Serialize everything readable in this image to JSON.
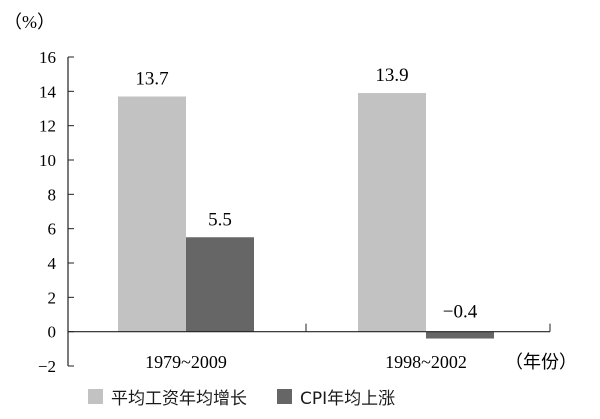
{
  "chart_data": {
    "type": "bar",
    "categories": [
      "1979~2009",
      "1998~2002"
    ],
    "series": [
      {
        "name": "平均工资年均增长",
        "values": [
          13.7,
          13.9
        ],
        "color": "#c2c2c2"
      },
      {
        "name": "CPI年均上涨",
        "values": [
          5.5,
          -0.4
        ],
        "color": "#666666"
      }
    ],
    "data_labels": [
      [
        "13.7",
        "13.9"
      ],
      [
        "5.5",
        "−0.4"
      ]
    ],
    "ylim": [
      -2,
      16
    ],
    "yticks": [
      -2,
      0,
      2,
      4,
      6,
      8,
      10,
      12,
      14,
      16
    ],
    "ylabel": "（%）",
    "xlabel": "（年份）",
    "grid": false,
    "legend_position": "bottom"
  }
}
